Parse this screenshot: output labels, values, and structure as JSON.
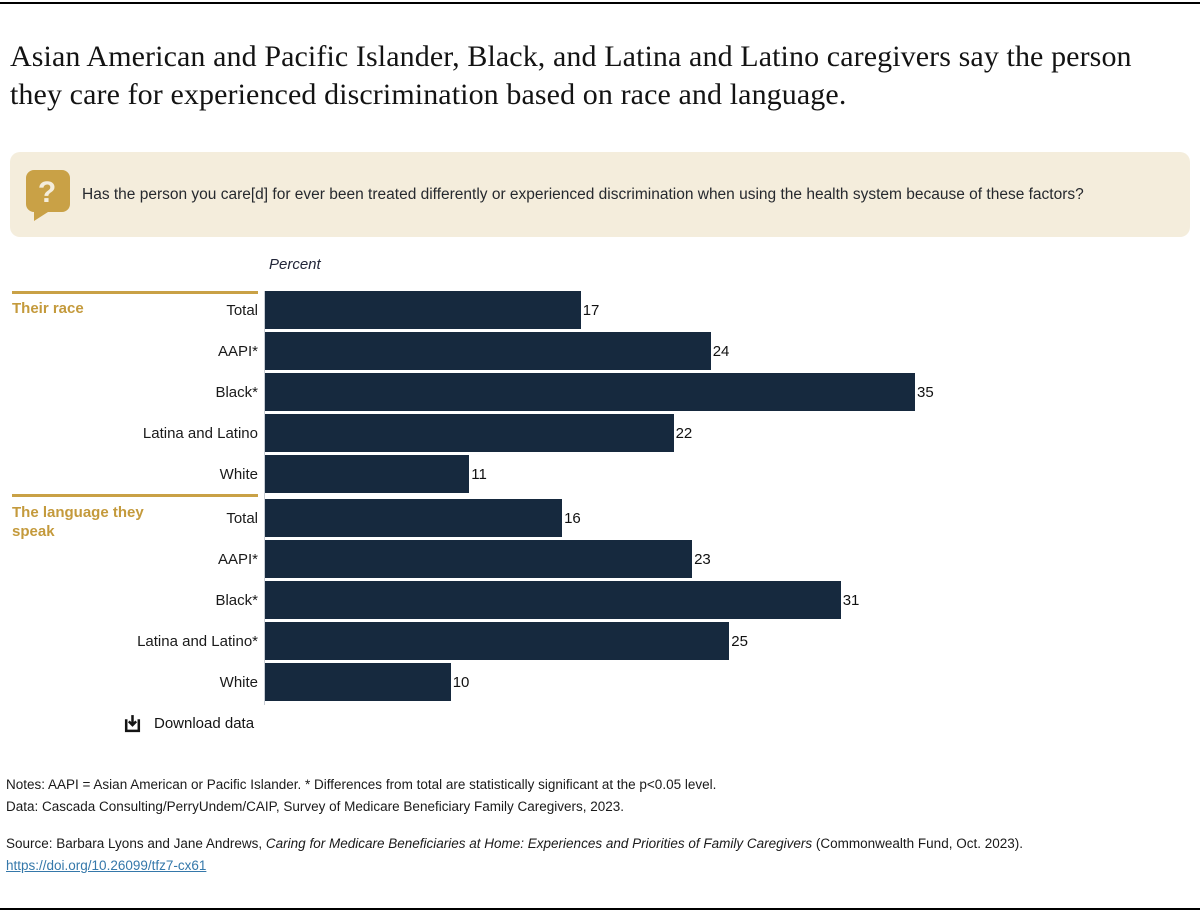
{
  "title": "Asian American and Pacific Islander, Black, and Latina and Latino caregivers say the person they care for experienced discrimination based on race and language.",
  "question": {
    "icon": "question-mark-speech-bubble",
    "text": "Has the person you care[d] for ever been treated differently or experienced discrimination when using the health system because of these factors?"
  },
  "chart_data": {
    "type": "bar",
    "orientation": "horizontal",
    "axis_label": "Percent",
    "xlim": [
      0,
      50
    ],
    "grid": false,
    "legend": "none",
    "groups": [
      {
        "label": "Their race",
        "categories": [
          "Total",
          "AAPI*",
          "Black*",
          "Latina and Latino",
          "White"
        ],
        "values": [
          17,
          24,
          35,
          22,
          11
        ]
      },
      {
        "label": "The language they speak",
        "categories": [
          "Total",
          "AAPI*",
          "Black*",
          "Latina and Latino*",
          "White"
        ],
        "values": [
          16,
          23,
          31,
          25,
          10
        ]
      }
    ]
  },
  "download": {
    "label": "Download data"
  },
  "notes": {
    "notes_line": "Notes: AAPI = Asian American or Pacific Islander. * Differences from total are statistically significant at the p<0.05 level.",
    "data_line": "Data: Cascada Consulting/PerryUndem/CAIP, Survey of Medicare Beneficiary Family Caregivers, 2023."
  },
  "source": {
    "prefix": "Source: Barbara Lyons and Jane Andrews, ",
    "italic_title": "Caring for Medicare Beneficiaries at Home: Experiences and Priorities of Family Caregivers",
    "suffix": " (Commonwealth Fund, Oct. 2023).",
    "link": "https://doi.org/10.26099/tfz7-cx61"
  },
  "colors": {
    "bar": "#16293e",
    "gold": "#c9a146",
    "question_bg": "#f4eddc",
    "link": "#3578aa"
  }
}
